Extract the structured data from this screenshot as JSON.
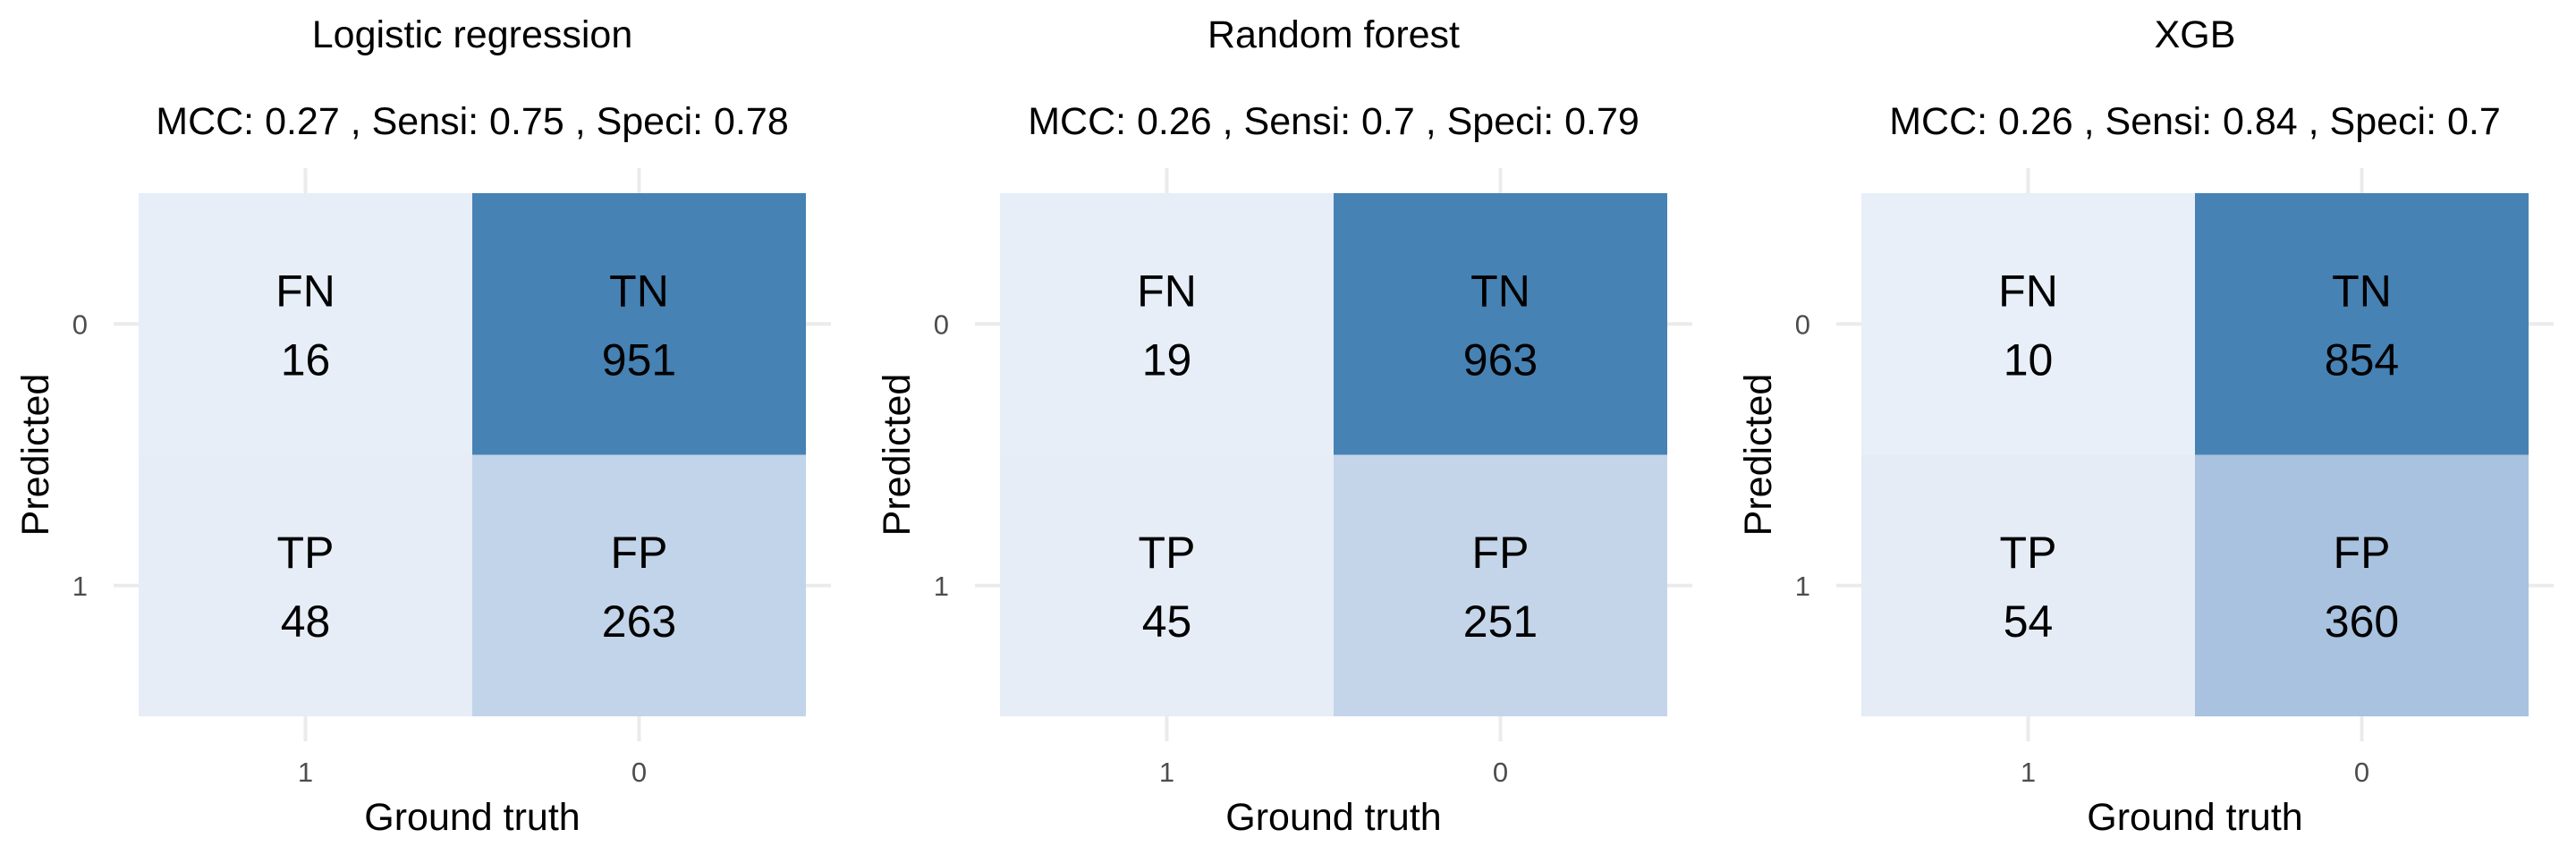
{
  "chart_data": [
    {
      "type": "heatmap",
      "title": "Logistic regression",
      "subtitle": "MCC: 0.27 , Sensi: 0.75 , Speci: 0.78",
      "xlabel": "Ground truth",
      "ylabel": "Predicted",
      "x_categories": [
        "1",
        "0"
      ],
      "y_categories": [
        "0",
        "1"
      ],
      "cells": [
        {
          "x": "1",
          "y": "0",
          "label": "FN",
          "value": 16,
          "color": "#E7EEF8"
        },
        {
          "x": "0",
          "y": "0",
          "label": "TN",
          "value": 951,
          "color": "#4682B4"
        },
        {
          "x": "1",
          "y": "1",
          "label": "TP",
          "value": 48,
          "color": "#E6EDF7"
        },
        {
          "x": "0",
          "y": "1",
          "label": "FP",
          "value": 263,
          "color": "#C2D4E9"
        }
      ],
      "grid": true,
      "legend": "none"
    },
    {
      "type": "heatmap",
      "title": "Random forest",
      "subtitle": "MCC: 0.26 , Sensi: 0.7 , Speci: 0.79",
      "xlabel": "Ground truth",
      "ylabel": "Predicted",
      "x_categories": [
        "1",
        "0"
      ],
      "y_categories": [
        "0",
        "1"
      ],
      "cells": [
        {
          "x": "1",
          "y": "0",
          "label": "FN",
          "value": 19,
          "color": "#E7EEF8"
        },
        {
          "x": "0",
          "y": "0",
          "label": "TN",
          "value": 963,
          "color": "#4682B4"
        },
        {
          "x": "1",
          "y": "1",
          "label": "TP",
          "value": 45,
          "color": "#E6EDF7"
        },
        {
          "x": "0",
          "y": "1",
          "label": "FP",
          "value": 251,
          "color": "#C4D5EA"
        }
      ],
      "grid": true,
      "legend": "none"
    },
    {
      "type": "heatmap",
      "title": "XGB",
      "subtitle": "MCC: 0.26 , Sensi: 0.84 , Speci: 0.7",
      "xlabel": "Ground truth",
      "ylabel": "Predicted",
      "x_categories": [
        "1",
        "0"
      ],
      "y_categories": [
        "0",
        "1"
      ],
      "cells": [
        {
          "x": "1",
          "y": "0",
          "label": "FN",
          "value": 10,
          "color": "#E8EFF8"
        },
        {
          "x": "0",
          "y": "0",
          "label": "TN",
          "value": 854,
          "color": "#4682B4"
        },
        {
          "x": "1",
          "y": "1",
          "label": "TP",
          "value": 54,
          "color": "#E5ECF6"
        },
        {
          "x": "0",
          "y": "1",
          "label": "FP",
          "value": 360,
          "color": "#A8C2DF"
        }
      ],
      "grid": true,
      "legend": "none"
    }
  ],
  "colors": {
    "grid": "#EBEBEB",
    "tick_text": "#4D4D4D",
    "text": "#000000"
  }
}
